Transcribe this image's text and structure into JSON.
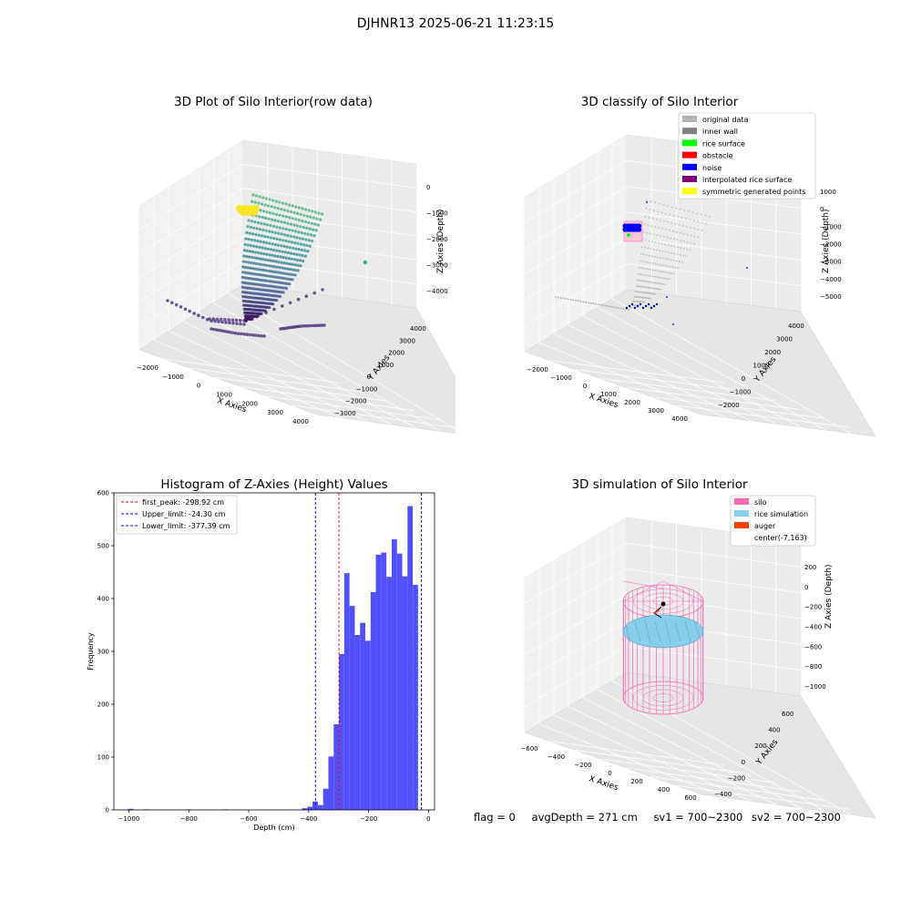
{
  "suptitle": "DJHNR13 2025-06-21 11:23:15",
  "footer": {
    "flag": "flag = 0",
    "avg_depth": "avgDepth = 271 cm",
    "sv1": "sv1 = 700~2300",
    "sv2": "sv2 = 700~2300"
  },
  "colors": {
    "bar": "#4c4cff",
    "peak_line": "#ff0000",
    "limit_line": "#0000ff",
    "silo": "#ff69b4",
    "rice": "#87ceeb",
    "auger": "#ff4500",
    "viridis_dark": "#440154",
    "viridis_mid": "#21918c",
    "viridis_light": "#5ec962",
    "viridis_yellow": "#fde725"
  },
  "chart_data": [
    {
      "type": "scatter",
      "subtype": "3d",
      "title": "3D Plot of Silo Interior(row data)",
      "xlabel": "X Axies",
      "ylabel": "Y Axies",
      "zlabel": "Z Axies (Depth)",
      "x_ticks": [
        "−2000",
        "−1000",
        "0",
        "1000",
        "2000",
        "3000",
        "4000"
      ],
      "y_ticks": [
        "−3000",
        "−2000",
        "−1000",
        "0",
        "1000",
        "2000",
        "3000",
        "4000"
      ],
      "z_ticks": [
        "0",
        "−1000",
        "−2000",
        "−3000",
        "−4000"
      ],
      "colormap": "viridis"
    },
    {
      "type": "scatter",
      "subtype": "3d",
      "title": "3D classify of Silo Interior",
      "xlabel": "X Axies",
      "ylabel": "Y Axies",
      "zlabel": "Z Axies (Depth)",
      "x_ticks": [
        "−2000",
        "−1000",
        "0",
        "1000",
        "2000",
        "3000",
        "4000"
      ],
      "y_ticks": [
        "−2000",
        "−1000",
        "0",
        "1000",
        "2000",
        "3000",
        "4000"
      ],
      "z_ticks": [
        "1000",
        "0",
        "−1000",
        "−2000",
        "−3000",
        "−4000",
        "−5000"
      ],
      "legend": [
        {
          "label": "original data",
          "color": "#b3b3b3"
        },
        {
          "label": "inner wall",
          "color": "#808080"
        },
        {
          "label": "rice surface",
          "color": "#00ff00"
        },
        {
          "label": "obstacle",
          "color": "#ff0000"
        },
        {
          "label": "noise",
          "color": "#0000ff"
        },
        {
          "label": "interpolated rice surface",
          "color": "#800080"
        },
        {
          "label": "symmetric generated points",
          "color": "#ffff00"
        }
      ],
      "legend_position": "top-right"
    },
    {
      "type": "bar",
      "subtype": "histogram",
      "title": "Histogram of Z-Axies (Height) Values",
      "xlabel": "Depth (cm)",
      "ylabel": "Frequency",
      "xlim": [
        -1050,
        20
      ],
      "ylim": [
        0,
        600
      ],
      "x_ticks": [
        -1000,
        -800,
        -600,
        -400,
        -200,
        0
      ],
      "y_ticks": [
        0,
        100,
        200,
        300,
        400,
        500,
        600
      ],
      "bin_width": 17.6,
      "bins": [
        {
          "start": -1003.0,
          "count": 2
        },
        {
          "start": -950.2,
          "count": 1
        },
        {
          "start": -809.4,
          "count": 1
        },
        {
          "start": -686.2,
          "count": 1
        },
        {
          "start": -422.2,
          "count": 3
        },
        {
          "start": -404.6,
          "count": 6
        },
        {
          "start": -387.0,
          "count": 16
        },
        {
          "start": -369.4,
          "count": 9
        },
        {
          "start": -351.8,
          "count": 40
        },
        {
          "start": -334.2,
          "count": 101
        },
        {
          "start": -316.6,
          "count": 162
        },
        {
          "start": -299.0,
          "count": 295
        },
        {
          "start": -281.4,
          "count": 448
        },
        {
          "start": -263.8,
          "count": 386
        },
        {
          "start": -246.2,
          "count": 331
        },
        {
          "start": -228.6,
          "count": 354
        },
        {
          "start": -211.0,
          "count": 320
        },
        {
          "start": -193.4,
          "count": 412
        },
        {
          "start": -175.8,
          "count": 483
        },
        {
          "start": -158.2,
          "count": 487
        },
        {
          "start": -140.6,
          "count": 441
        },
        {
          "start": -123.0,
          "count": 512
        },
        {
          "start": -105.4,
          "count": 485
        },
        {
          "start": -87.8,
          "count": 442
        },
        {
          "start": -70.2,
          "count": 575
        },
        {
          "start": -52.6,
          "count": 426
        }
      ],
      "vlines": [
        {
          "label": "first_peak: -298.92 cm",
          "x": -298.92,
          "color": "#ff0000"
        },
        {
          "label": "Upper_limit: -24.30 cm",
          "x": -24.3,
          "color": "#0000ff"
        },
        {
          "label": "Lower_limit: -377.39 cm",
          "x": -377.39,
          "color": "#0000ff"
        }
      ],
      "legend_position": "top-left"
    },
    {
      "type": "scatter",
      "subtype": "3d",
      "title": "3D simulation of Silo Interior",
      "xlabel": "X Axies",
      "ylabel": "Y Axies",
      "zlabel": "Z Axies (Depth)",
      "x_ticks": [
        "−600",
        "−400",
        "−200",
        "0",
        "200",
        "400",
        "600"
      ],
      "y_ticks": [
        "−400",
        "−200",
        "0",
        "200",
        "400",
        "600"
      ],
      "z_ticks": [
        "200",
        "0",
        "−200",
        "−400",
        "−600",
        "−800",
        "−1000"
      ],
      "legend": [
        {
          "label": "silo",
          "color": "#ff69b4"
        },
        {
          "label": "rice simulation",
          "color": "#87ceeb"
        },
        {
          "label": "auger",
          "color": "#ff4500"
        },
        {
          "label": "center(-7,163)",
          "color": ""
        }
      ],
      "legend_position": "top-right"
    }
  ]
}
